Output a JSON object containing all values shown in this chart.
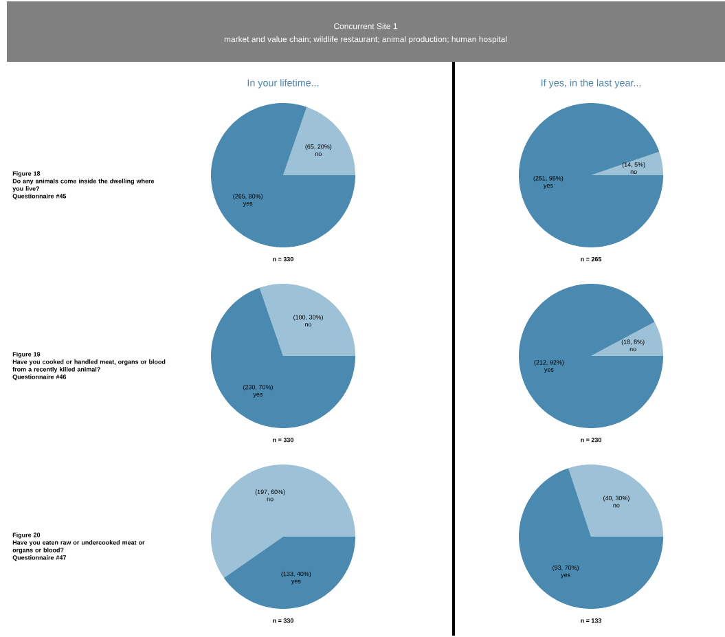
{
  "chart_data": [
    {
      "type": "other",
      "title": "Concurrent Site 1",
      "subtitle": "market and value chain; wildlife restaurant; animal production; human hospital"
    },
    {
      "type": "pie",
      "title": "In your lifetime...",
      "categories": [
        "no",
        "yes"
      ],
      "values": [
        65,
        265
      ],
      "colors": [
        "#9dc1d6",
        "#4a8ab0"
      ],
      "value_labels": [
        "(65, 20%)",
        "(265, 80%)"
      ],
      "xlabel": "n = 330",
      "annotations": [
        "Figure 18",
        "Do any animals come inside the dwelling where you live?",
        "Questionnaire #45"
      ]
    },
    {
      "type": "pie",
      "title": "If yes, in the last year...",
      "categories": [
        "no",
        "yes"
      ],
      "values": [
        14,
        251
      ],
      "colors": [
        "#9dc1d6",
        "#4a8ab0"
      ],
      "value_labels": [
        "(14, 5%)",
        "(251, 95%)"
      ],
      "xlabel": "n = 265"
    },
    {
      "type": "pie",
      "categories": [
        "no",
        "yes"
      ],
      "values": [
        100,
        230
      ],
      "colors": [
        "#9dc1d6",
        "#4a8ab0"
      ],
      "value_labels": [
        "(100, 30%)",
        "(230, 70%)"
      ],
      "xlabel": "n = 330",
      "annotations": [
        "Figure 19",
        "Have you cooked or handled meat, organs or blood from a recently killed animal?",
        "Questionnaire #46"
      ]
    },
    {
      "type": "pie",
      "categories": [
        "no",
        "yes"
      ],
      "values": [
        18,
        212
      ],
      "colors": [
        "#9dc1d6",
        "#4a8ab0"
      ],
      "value_labels": [
        "(18, 8%)",
        "(212, 92%)"
      ],
      "xlabel": "n = 230"
    },
    {
      "type": "pie",
      "categories": [
        "no",
        "yes"
      ],
      "values": [
        197,
        133
      ],
      "colors": [
        "#9dc1d6",
        "#4a8ab0"
      ],
      "value_labels": [
        "(197, 60%)",
        "(133, 40%)"
      ],
      "xlabel": "n = 330",
      "annotations": [
        "Figure 20",
        "Have you eaten raw or undercooked meat or organs or blood?",
        "Questionnaire #47"
      ]
    },
    {
      "type": "pie",
      "categories": [
        "no",
        "yes"
      ],
      "values": [
        40,
        93
      ],
      "colors": [
        "#9dc1d6",
        "#4a8ab0"
      ],
      "value_labels": [
        "(40, 30%)",
        "(93, 70%)"
      ],
      "xlabel": "n = 133"
    }
  ]
}
